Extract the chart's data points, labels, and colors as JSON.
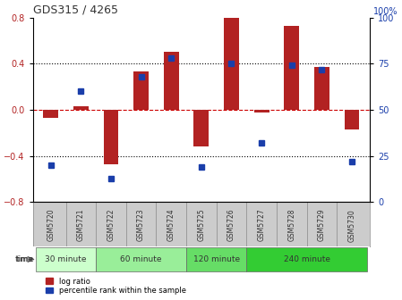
{
  "title": "GDS315 / 4265",
  "samples": [
    "GSM5720",
    "GSM5721",
    "GSM5722",
    "GSM5723",
    "GSM5724",
    "GSM5725",
    "GSM5726",
    "GSM5727",
    "GSM5728",
    "GSM5729",
    "GSM5730"
  ],
  "log_ratio": [
    -0.07,
    0.03,
    -0.47,
    0.33,
    0.5,
    -0.32,
    0.8,
    -0.02,
    0.73,
    0.37,
    -0.17
  ],
  "percentile": [
    20,
    60,
    13,
    68,
    78,
    19,
    75,
    32,
    74,
    72,
    22
  ],
  "ylim": [
    -0.8,
    0.8
  ],
  "yticks_left": [
    -0.8,
    -0.4,
    0.0,
    0.4,
    0.8
  ],
  "yticks_right": [
    0,
    25,
    50,
    75,
    100
  ],
  "bar_color": "#b22222",
  "dot_color": "#1a3eaa",
  "zero_line_color": "#cc0000",
  "grid_color": "#000000",
  "groups": [
    {
      "label": "30 minute",
      "start": 0,
      "end": 2,
      "color": "#ccffcc"
    },
    {
      "label": "60 minute",
      "start": 2,
      "end": 5,
      "color": "#99ee99"
    },
    {
      "label": "120 minute",
      "start": 5,
      "end": 7,
      "color": "#66dd66"
    },
    {
      "label": "240 minute",
      "start": 7,
      "end": 11,
      "color": "#33cc33"
    }
  ],
  "time_label": "time",
  "legend_bar_label": "log ratio",
  "legend_dot_label": "percentile rank within the sample",
  "bg_color": "#ffffff",
  "plot_bg_color": "#ffffff",
  "tick_row_color": "#cccccc"
}
